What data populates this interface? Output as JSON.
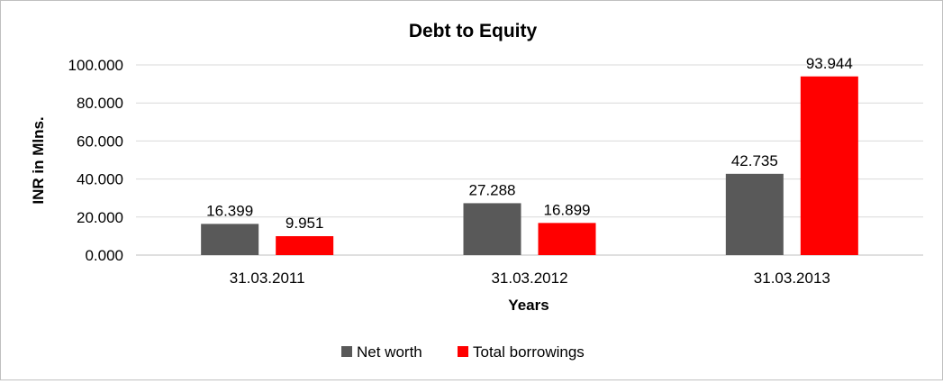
{
  "chart_data": {
    "type": "bar",
    "title": "Debt to Equity",
    "xlabel": "Years",
    "ylabel": "INR in Mlns.",
    "categories": [
      "31.03.2011",
      "31.03.2012",
      "31.03.2013"
    ],
    "series": [
      {
        "name": "Net worth",
        "color": "#595959",
        "values": [
          16.399,
          27.288,
          42.735
        ],
        "value_labels": [
          "16.399",
          "27.288",
          "42.735"
        ]
      },
      {
        "name": "Total borrowings",
        "color": "#ff0000",
        "values": [
          9.951,
          16.899,
          93.944
        ],
        "value_labels": [
          "9.951",
          "16.899",
          "93.944"
        ]
      }
    ],
    "ylim": [
      0,
      100
    ],
    "yticks": [
      0,
      20,
      40,
      60,
      80,
      100
    ],
    "ytick_labels": [
      "0.000",
      "20.000",
      "40.000",
      "60.000",
      "80.000",
      "100.000"
    ],
    "grid": true,
    "legend": "bottom-center"
  }
}
